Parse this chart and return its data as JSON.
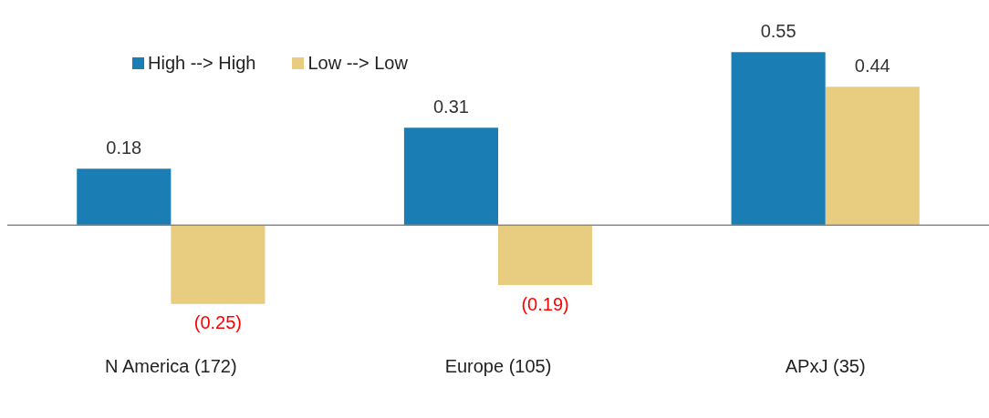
{
  "chart_data": {
    "type": "bar",
    "categories": [
      "N America (172)",
      "Europe (105)",
      "APxJ (35)"
    ],
    "series": [
      {
        "name": "High --> High",
        "color": "#1a7db3",
        "values": [
          0.18,
          0.31,
          0.55
        ],
        "value_labels": [
          "0.18",
          "0.31",
          "0.55"
        ]
      },
      {
        "name": "Low --> Low",
        "color": "#e8cd80",
        "values": [
          -0.25,
          -0.19,
          0.44
        ],
        "value_labels": [
          "(0.25)",
          "(0.19)",
          "0.44"
        ]
      }
    ],
    "tick_labels": "x",
    "grid": false,
    "legend": "top left"
  }
}
